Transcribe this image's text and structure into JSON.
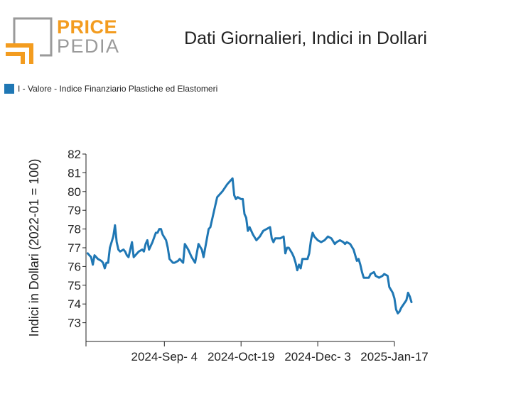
{
  "logo": {
    "word_a": "PRICE",
    "word_b": "PEDIA"
  },
  "title": "Dati Giornalieri, Indici in Dollari",
  "colors": {
    "series": "#1f77b4",
    "logo_orange": "#f39c1f",
    "logo_gray": "#9a9a9a"
  },
  "chart_data": {
    "type": "line",
    "title": "Dati Giornalieri, Indici in Dollari",
    "xlabel": "",
    "ylabel": "Indici in Dollari (2022-01 = 100)",
    "ylim": [
      72,
      82
    ],
    "yticks": [
      73,
      74,
      75,
      76,
      77,
      78,
      79,
      80,
      81,
      82
    ],
    "xticks": [
      "2024-Sep- 4",
      "2024-Oct-19",
      "2024-Dec- 3",
      "2025-Jan-17"
    ],
    "grid": false,
    "legend_position": "top-left",
    "series": [
      {
        "name": "I - Valore - Indice Finanziario Plastiche ed Elastomeri",
        "points": [
          [
            "2024-07-21",
            76.7
          ],
          [
            "2024-07-22",
            76.6
          ],
          [
            "2024-07-23",
            76.5
          ],
          [
            "2024-07-24",
            76.1
          ],
          [
            "2024-07-25",
            76.6
          ],
          [
            "2024-07-27",
            76.4
          ],
          [
            "2024-07-29",
            76.3
          ],
          [
            "2024-07-30",
            76.2
          ],
          [
            "2024-07-31",
            75.9
          ],
          [
            "2024-08-01",
            76.2
          ],
          [
            "2024-08-02",
            76.2
          ],
          [
            "2024-08-03",
            77.0
          ],
          [
            "2024-08-05",
            77.6
          ],
          [
            "2024-08-06",
            78.2
          ],
          [
            "2024-08-07",
            77.3
          ],
          [
            "2024-08-08",
            76.9
          ],
          [
            "2024-08-09",
            76.8
          ],
          [
            "2024-08-11",
            76.9
          ],
          [
            "2024-08-12",
            76.8
          ],
          [
            "2024-08-13",
            76.6
          ],
          [
            "2024-08-14",
            76.5
          ],
          [
            "2024-08-15",
            76.9
          ],
          [
            "2024-08-16",
            77.3
          ],
          [
            "2024-08-17",
            76.5
          ],
          [
            "2024-08-18",
            76.6
          ],
          [
            "2024-08-19",
            76.7
          ],
          [
            "2024-08-20",
            76.8
          ],
          [
            "2024-08-22",
            76.9
          ],
          [
            "2024-08-23",
            76.8
          ],
          [
            "2024-08-24",
            77.2
          ],
          [
            "2024-08-25",
            77.4
          ],
          [
            "2024-08-26",
            76.9
          ],
          [
            "2024-08-27",
            77.1
          ],
          [
            "2024-08-28",
            77.3
          ],
          [
            "2024-08-30",
            77.8
          ],
          [
            "2024-08-31",
            77.8
          ],
          [
            "2024-09-01",
            78.0
          ],
          [
            "2024-09-02",
            78.0
          ],
          [
            "2024-09-03",
            77.7
          ],
          [
            "2024-09-05",
            77.4
          ],
          [
            "2024-09-06",
            77.0
          ],
          [
            "2024-09-07",
            76.4
          ],
          [
            "2024-09-09",
            76.2
          ],
          [
            "2024-09-10",
            76.2
          ],
          [
            "2024-09-12",
            76.3
          ],
          [
            "2024-09-13",
            76.4
          ],
          [
            "2024-09-14",
            76.3
          ],
          [
            "2024-09-15",
            76.2
          ],
          [
            "2024-09-16",
            77.2
          ],
          [
            "2024-09-18",
            76.9
          ],
          [
            "2024-09-20",
            76.5
          ],
          [
            "2024-09-22",
            76.2
          ],
          [
            "2024-09-24",
            77.2
          ],
          [
            "2024-09-26",
            76.9
          ],
          [
            "2024-09-27",
            76.5
          ],
          [
            "2024-09-29",
            77.5
          ],
          [
            "2024-09-30",
            78.0
          ],
          [
            "2024-10-01",
            78.1
          ],
          [
            "2024-10-03",
            78.9
          ],
          [
            "2024-10-05",
            79.7
          ],
          [
            "2024-10-08",
            80.0
          ],
          [
            "2024-10-11",
            80.4
          ],
          [
            "2024-10-14",
            80.7
          ],
          [
            "2024-10-15",
            79.8
          ],
          [
            "2024-10-16",
            79.6
          ],
          [
            "2024-10-17",
            79.7
          ],
          [
            "2024-10-19",
            79.6
          ],
          [
            "2024-10-20",
            79.6
          ],
          [
            "2024-10-21",
            78.8
          ],
          [
            "2024-10-22",
            78.6
          ],
          [
            "2024-10-23",
            77.9
          ],
          [
            "2024-10-24",
            78.1
          ],
          [
            "2024-10-25",
            77.9
          ],
          [
            "2024-10-26",
            77.7
          ],
          [
            "2024-10-28",
            77.4
          ],
          [
            "2024-10-30",
            77.6
          ],
          [
            "2024-11-01",
            77.9
          ],
          [
            "2024-11-03",
            78.0
          ],
          [
            "2024-11-05",
            78.1
          ],
          [
            "2024-11-06",
            77.5
          ],
          [
            "2024-11-07",
            77.3
          ],
          [
            "2024-11-08",
            77.5
          ],
          [
            "2024-11-11",
            77.5
          ],
          [
            "2024-11-13",
            77.6
          ],
          [
            "2024-11-14",
            76.7
          ],
          [
            "2024-11-15",
            77.0
          ],
          [
            "2024-11-16",
            77.0
          ],
          [
            "2024-11-18",
            76.7
          ],
          [
            "2024-11-19",
            76.5
          ],
          [
            "2024-11-20",
            76.2
          ],
          [
            "2024-11-21",
            75.8
          ],
          [
            "2024-11-22",
            76.1
          ],
          [
            "2024-11-23",
            75.9
          ],
          [
            "2024-11-24",
            76.4
          ],
          [
            "2024-11-25",
            76.4
          ],
          [
            "2024-11-27",
            76.4
          ],
          [
            "2024-11-28",
            76.7
          ],
          [
            "2024-11-29",
            77.4
          ],
          [
            "2024-11-30",
            77.8
          ],
          [
            "2024-12-01",
            77.6
          ],
          [
            "2024-12-03",
            77.4
          ],
          [
            "2024-12-05",
            77.3
          ],
          [
            "2024-12-07",
            77.4
          ],
          [
            "2024-12-09",
            77.6
          ],
          [
            "2024-12-11",
            77.5
          ],
          [
            "2024-12-13",
            77.2
          ],
          [
            "2024-12-14",
            77.3
          ],
          [
            "2024-12-16",
            77.4
          ],
          [
            "2024-12-18",
            77.3
          ],
          [
            "2024-12-19",
            77.2
          ],
          [
            "2024-12-20",
            77.3
          ],
          [
            "2024-12-22",
            77.2
          ],
          [
            "2024-12-24",
            76.9
          ],
          [
            "2024-12-26",
            76.3
          ],
          [
            "2024-12-27",
            76.4
          ],
          [
            "2024-12-28",
            76.1
          ],
          [
            "2024-12-29",
            75.7
          ],
          [
            "2024-12-30",
            75.4
          ],
          [
            "2025-01-02",
            75.4
          ],
          [
            "2025-01-03",
            75.6
          ],
          [
            "2025-01-05",
            75.7
          ],
          [
            "2025-01-06",
            75.5
          ],
          [
            "2025-01-08",
            75.4
          ],
          [
            "2025-01-10",
            75.5
          ],
          [
            "2025-01-11",
            75.6
          ],
          [
            "2025-01-13",
            75.5
          ],
          [
            "2025-01-14",
            74.9
          ],
          [
            "2025-01-16",
            74.6
          ],
          [
            "2025-01-17",
            74.3
          ],
          [
            "2025-01-18",
            73.7
          ],
          [
            "2025-01-19",
            73.5
          ],
          [
            "2025-01-20",
            73.6
          ],
          [
            "2025-01-21",
            73.8
          ],
          [
            "2025-01-24",
            74.2
          ],
          [
            "2025-01-25",
            74.6
          ],
          [
            "2025-01-26",
            74.4
          ],
          [
            "2025-01-27",
            74.1
          ]
        ]
      }
    ]
  }
}
